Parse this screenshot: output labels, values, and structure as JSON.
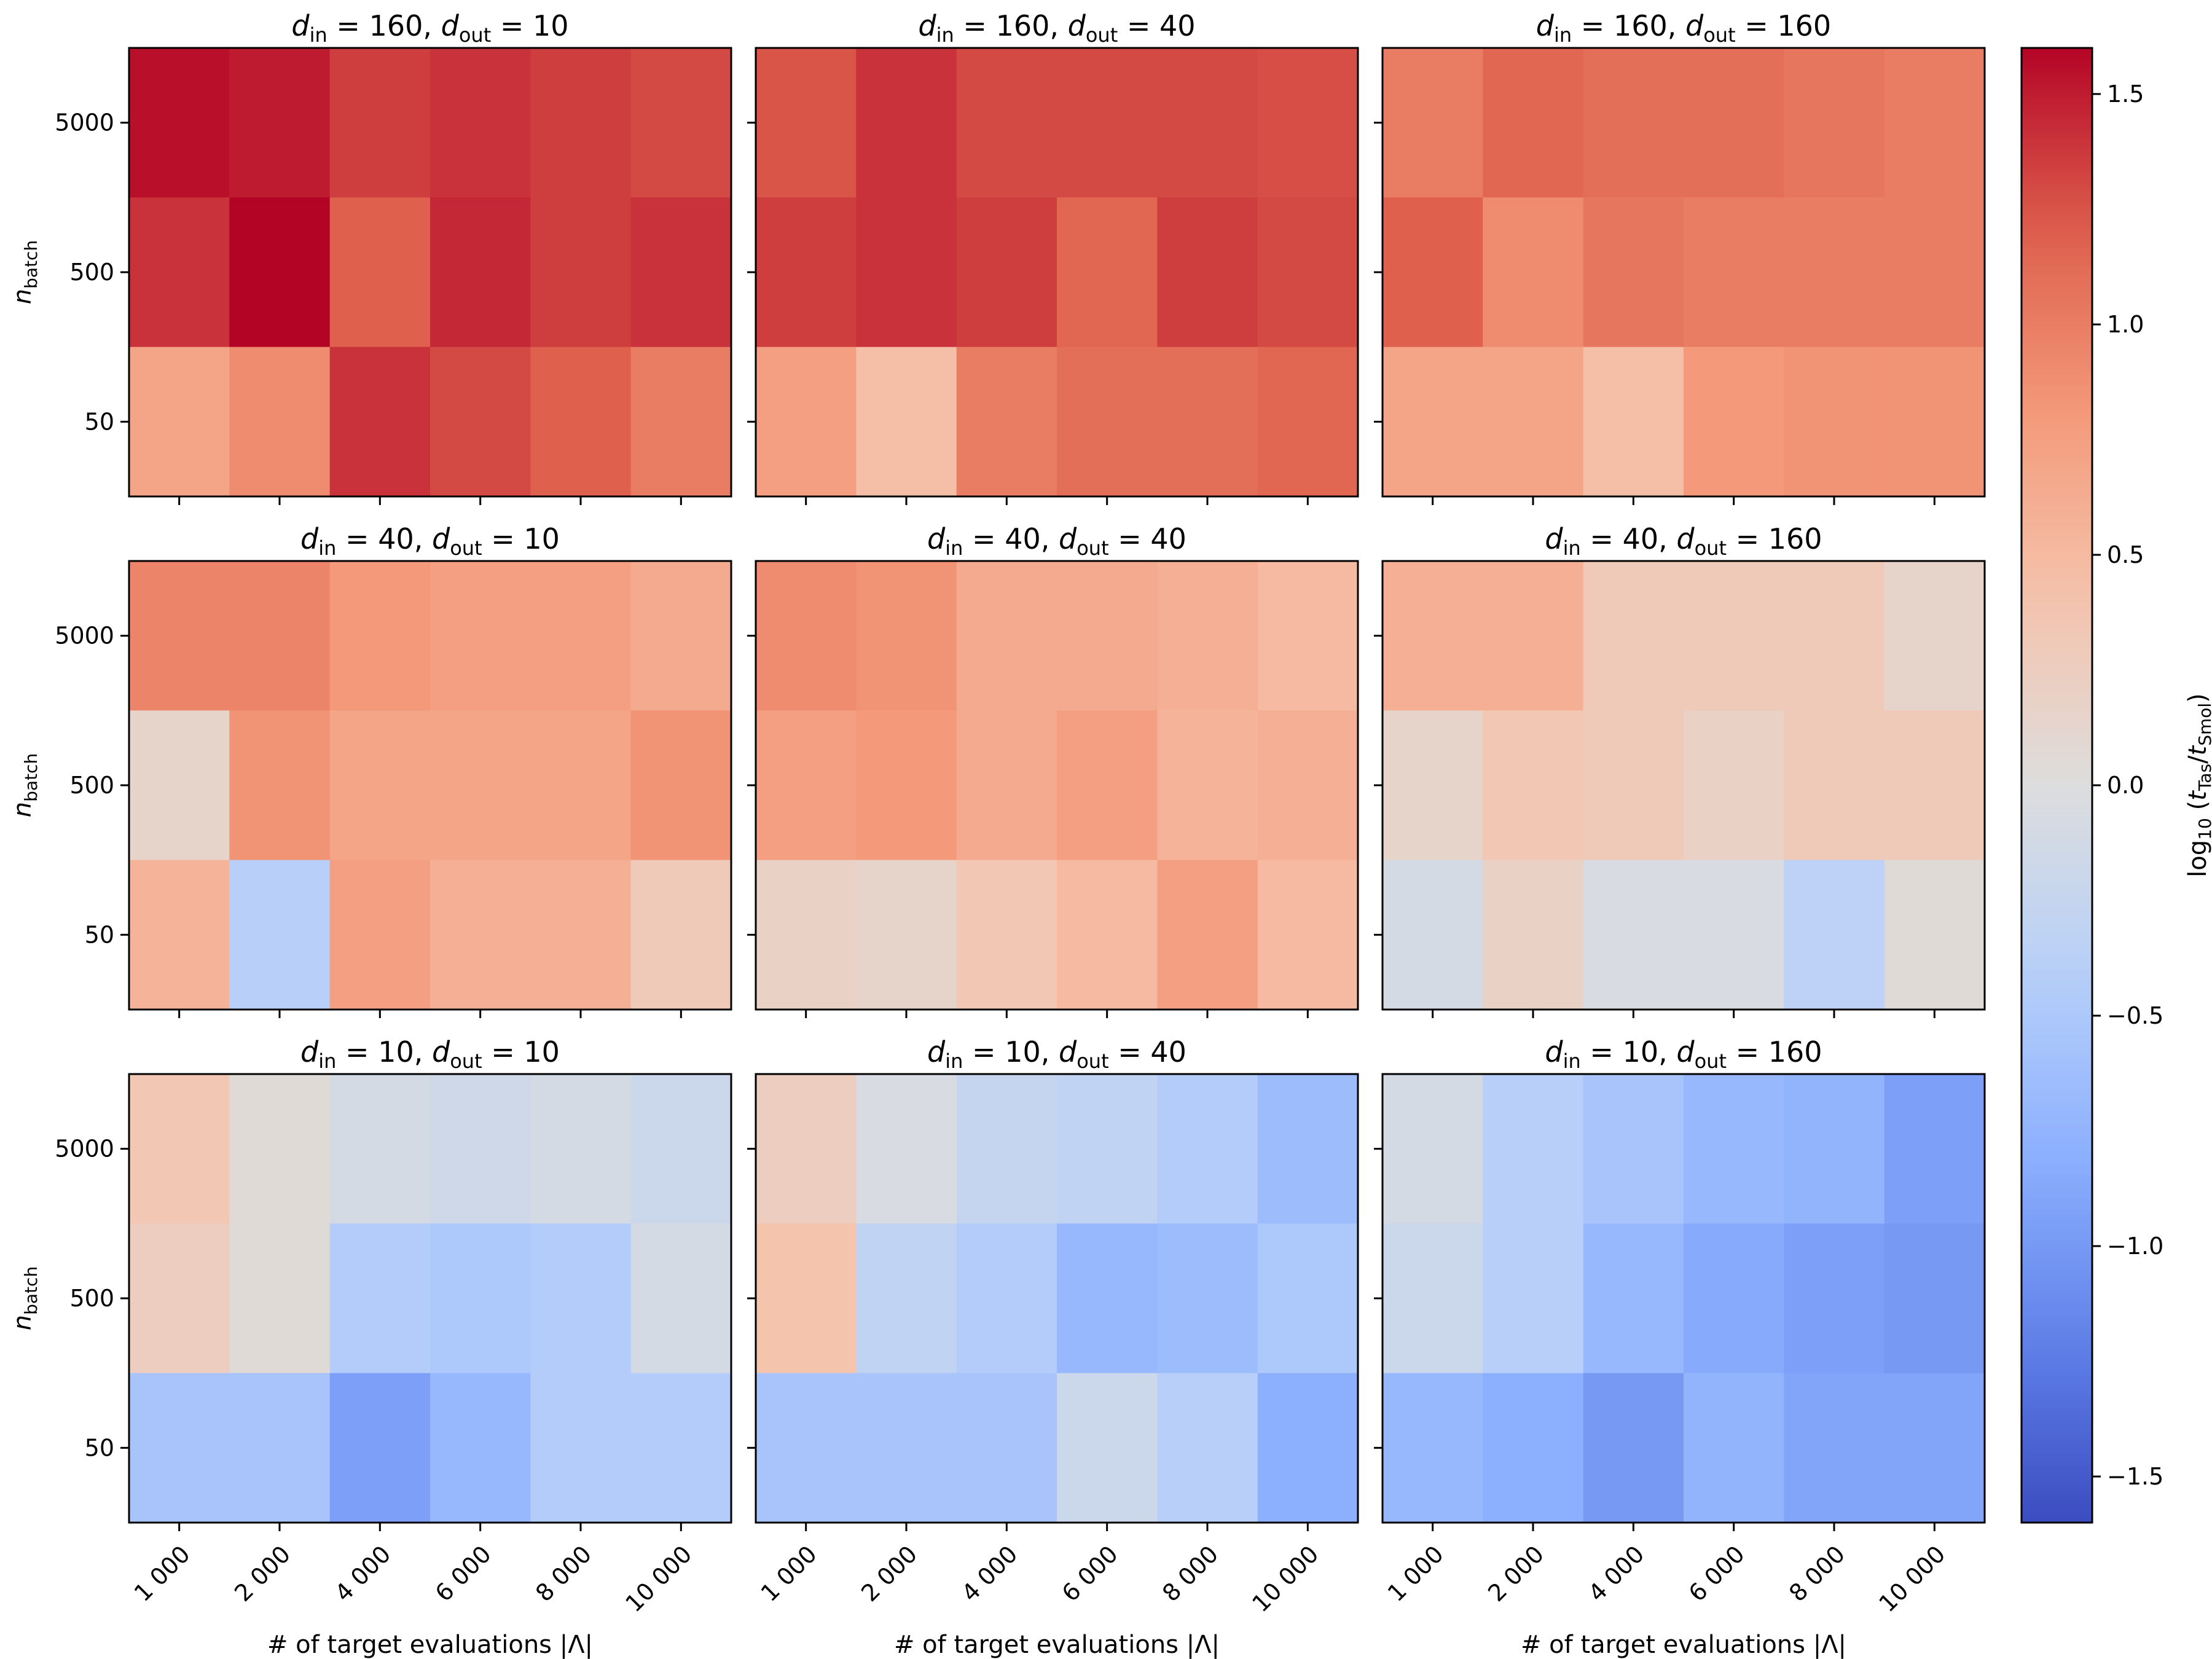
{
  "chart_data": {
    "type": "heatmap",
    "figure": {
      "xlabel": "# of target evaluations |Λ|",
      "ylabel_main": "n",
      "ylabel_sub": "batch",
      "x_categories": [
        "1 000",
        "2 000",
        "4 000",
        "6 000",
        "8 000",
        "10 000"
      ],
      "y_categories": [
        "5000",
        "500",
        "50"
      ],
      "colorbar": {
        "label_main": "log",
        "label_sub": "10",
        "label_open": "(",
        "label_t1": "t",
        "label_t1_sub": "Tas",
        "label_slash": "/",
        "label_t2": "t",
        "label_t2_sub": "Smol",
        "label_close": ")",
        "range": [
          -1.6,
          1.6
        ],
        "ticks": [
          1.5,
          1.0,
          0.5,
          0.0,
          -0.5,
          -1.0,
          -1.5
        ],
        "tick_labels": [
          "1.5",
          "1.0",
          "0.5",
          "0.0",
          "−0.5",
          "−1.0",
          "−1.5"
        ],
        "colormap": "coolwarm"
      }
    },
    "panels": [
      {
        "title_a": "d",
        "title_a_sub": "in",
        "title_a_val": " = 160, ",
        "title_b": "d",
        "title_b_sub": "out",
        "title_b_val": " = 10",
        "values": [
          [
            1.55,
            1.5,
            1.35,
            1.4,
            1.35,
            1.3
          ],
          [
            1.4,
            1.6,
            1.2,
            1.45,
            1.35,
            1.4
          ],
          [
            0.7,
            0.9,
            1.4,
            1.3,
            1.2,
            1.0
          ]
        ]
      },
      {
        "title_a": "d",
        "title_a_sub": "in",
        "title_a_val": " = 160, ",
        "title_b": "d",
        "title_b_sub": "out",
        "title_b_val": " = 40",
        "values": [
          [
            1.25,
            1.4,
            1.3,
            1.3,
            1.3,
            1.28
          ],
          [
            1.35,
            1.4,
            1.35,
            1.15,
            1.35,
            1.3
          ],
          [
            0.75,
            0.45,
            1.0,
            1.1,
            1.1,
            1.15
          ]
        ]
      },
      {
        "title_a": "d",
        "title_a_sub": "in",
        "title_a_val": " = 160, ",
        "title_b": "d",
        "title_b_sub": "out",
        "title_b_val": " = 160",
        "values": [
          [
            1.0,
            1.15,
            1.1,
            1.1,
            1.05,
            1.0
          ],
          [
            1.2,
            0.9,
            1.05,
            1.0,
            1.0,
            1.0
          ],
          [
            0.7,
            0.7,
            0.45,
            0.8,
            0.85,
            0.85
          ]
        ]
      },
      {
        "title_a": "d",
        "title_a_sub": "in",
        "title_a_val": " = 40, ",
        "title_b": "d",
        "title_b_sub": "out",
        "title_b_val": " = 10",
        "values": [
          [
            0.95,
            0.95,
            0.8,
            0.75,
            0.75,
            0.65
          ],
          [
            0.15,
            0.85,
            0.7,
            0.7,
            0.7,
            0.85
          ],
          [
            0.55,
            -0.4,
            0.75,
            0.6,
            0.6,
            0.3
          ]
        ]
      },
      {
        "title_a": "d",
        "title_a_sub": "in",
        "title_a_val": " = 40, ",
        "title_b": "d",
        "title_b_sub": "out",
        "title_b_val": " = 40",
        "values": [
          [
            0.9,
            0.85,
            0.65,
            0.65,
            0.6,
            0.5
          ],
          [
            0.75,
            0.8,
            0.65,
            0.75,
            0.55,
            0.6
          ],
          [
            0.2,
            0.15,
            0.35,
            0.5,
            0.75,
            0.5
          ]
        ]
      },
      {
        "title_a": "d",
        "title_a_sub": "in",
        "title_a_val": " = 40, ",
        "title_b": "d",
        "title_b_sub": "out",
        "title_b_val": " = 160",
        "values": [
          [
            0.6,
            0.6,
            0.3,
            0.3,
            0.3,
            0.15
          ],
          [
            0.15,
            0.35,
            0.3,
            0.2,
            0.3,
            0.3
          ],
          [
            -0.1,
            0.2,
            -0.05,
            -0.05,
            -0.35,
            0.05
          ]
        ]
      },
      {
        "title_a": "d",
        "title_a_sub": "in",
        "title_a_val": " = 10, ",
        "title_b": "d",
        "title_b_sub": "out",
        "title_b_val": " = 10",
        "values": [
          [
            0.35,
            0.05,
            -0.1,
            -0.15,
            -0.1,
            -0.2
          ],
          [
            0.25,
            0.05,
            -0.45,
            -0.5,
            -0.45,
            -0.1
          ],
          [
            -0.55,
            -0.55,
            -0.95,
            -0.7,
            -0.45,
            -0.45
          ]
        ]
      },
      {
        "title_a": "d",
        "title_a_sub": "in",
        "title_a_val": " = 10, ",
        "title_b": "d",
        "title_b_sub": "out",
        "title_b_val": " = 40",
        "values": [
          [
            0.25,
            -0.05,
            -0.25,
            -0.3,
            -0.45,
            -0.65
          ],
          [
            0.4,
            -0.3,
            -0.45,
            -0.7,
            -0.65,
            -0.5
          ],
          [
            -0.55,
            -0.55,
            -0.55,
            -0.2,
            -0.4,
            -0.8
          ]
        ]
      },
      {
        "title_a": "d",
        "title_a_sub": "in",
        "title_a_val": " = 10, ",
        "title_b": "d",
        "title_b_sub": "out",
        "title_b_val": " = 160",
        "values": [
          [
            -0.1,
            -0.4,
            -0.55,
            -0.7,
            -0.75,
            -0.95
          ],
          [
            -0.2,
            -0.4,
            -0.7,
            -0.85,
            -0.95,
            -1.0
          ],
          [
            -0.7,
            -0.8,
            -1.0,
            -0.75,
            -0.9,
            -0.9
          ]
        ]
      }
    ]
  }
}
